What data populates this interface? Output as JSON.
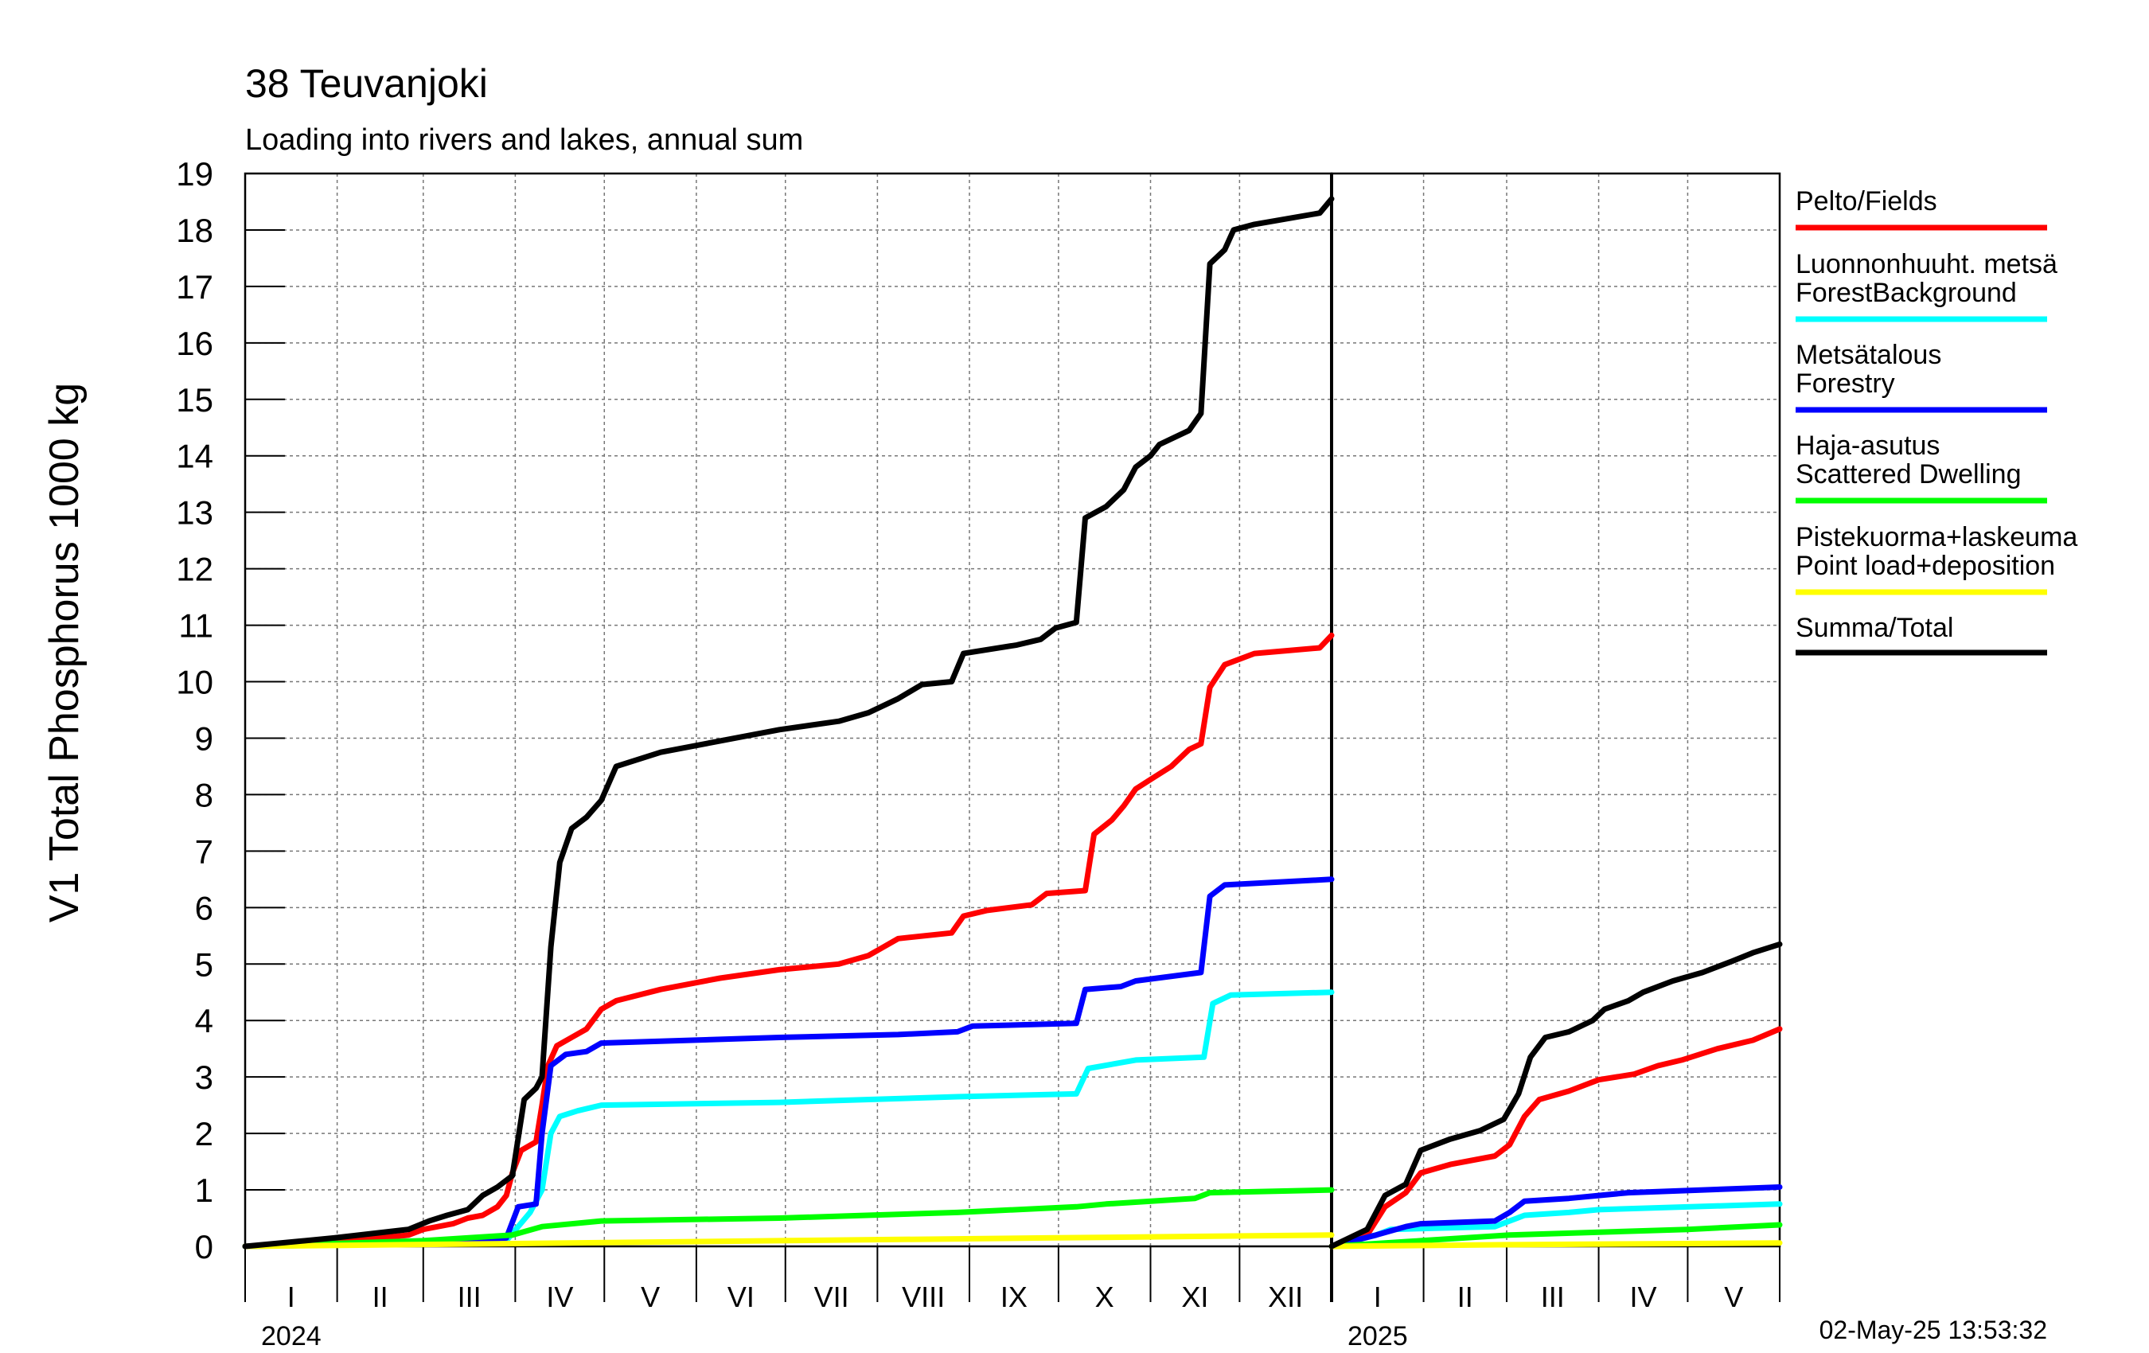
{
  "chart_data": {
    "type": "line",
    "title": "38 Teuvanjoki",
    "subtitle": "Loading into rivers and lakes, annual sum",
    "ylabel": "V1 Total Phosphorus 1000 kg",
    "ylim": [
      0,
      19
    ],
    "yticks": [
      0,
      1,
      2,
      3,
      4,
      5,
      6,
      7,
      8,
      9,
      10,
      11,
      12,
      13,
      14,
      15,
      16,
      17,
      18,
      19
    ],
    "grid": true,
    "legend_position": "right",
    "timestamp": "02-May-25 13:53:32",
    "panels": [
      {
        "year": "2024",
        "x_unit": "day-of-year",
        "xlim": [
          0,
          366
        ],
        "months": [
          "I",
          "II",
          "III",
          "IV",
          "V",
          "VI",
          "VII",
          "VIII",
          "IX",
          "X",
          "XI",
          "XII"
        ],
        "month_starts": [
          0,
          31,
          60,
          91,
          121,
          152,
          182,
          213,
          244,
          274,
          305,
          335,
          366
        ]
      },
      {
        "year": "2025",
        "x_unit": "day-of-year",
        "xlim": [
          0,
          151
        ],
        "months": [
          "I",
          "II",
          "III",
          "IV",
          "V"
        ],
        "month_starts": [
          0,
          31,
          59,
          90,
          120,
          151
        ]
      }
    ],
    "series": [
      {
        "name": "Pelto/Fields",
        "color": "#ff0000",
        "panel_2024": [
          [
            0,
            0
          ],
          [
            20,
            0.05
          ],
          [
            40,
            0.12
          ],
          [
            55,
            0.2
          ],
          [
            60,
            0.3
          ],
          [
            70,
            0.4
          ],
          [
            75,
            0.5
          ],
          [
            80,
            0.55
          ],
          [
            85,
            0.7
          ],
          [
            88,
            0.9
          ],
          [
            90,
            1.3
          ],
          [
            93,
            1.7
          ],
          [
            98,
            1.85
          ],
          [
            100,
            2.5
          ],
          [
            102,
            3.2
          ],
          [
            105,
            3.55
          ],
          [
            110,
            3.7
          ],
          [
            115,
            3.85
          ],
          [
            120,
            4.2
          ],
          [
            125,
            4.35
          ],
          [
            140,
            4.55
          ],
          [
            160,
            4.75
          ],
          [
            180,
            4.9
          ],
          [
            200,
            5.0
          ],
          [
            210,
            5.15
          ],
          [
            215,
            5.3
          ],
          [
            220,
            5.45
          ],
          [
            238,
            5.55
          ],
          [
            242,
            5.85
          ],
          [
            250,
            5.95
          ],
          [
            265,
            6.05
          ],
          [
            270,
            6.25
          ],
          [
            283,
            6.3
          ],
          [
            286,
            7.3
          ],
          [
            292,
            7.55
          ],
          [
            296,
            7.8
          ],
          [
            300,
            8.1
          ],
          [
            306,
            8.3
          ],
          [
            312,
            8.5
          ],
          [
            318,
            8.8
          ],
          [
            322,
            8.9
          ],
          [
            325,
            9.9
          ],
          [
            330,
            10.3
          ],
          [
            340,
            10.5
          ],
          [
            362,
            10.6
          ],
          [
            366,
            10.82
          ]
        ],
        "panel_2025": [
          [
            0,
            0
          ],
          [
            12,
            0.2
          ],
          [
            18,
            0.7
          ],
          [
            25,
            0.95
          ],
          [
            30,
            1.3
          ],
          [
            40,
            1.45
          ],
          [
            55,
            1.6
          ],
          [
            60,
            1.8
          ],
          [
            65,
            2.3
          ],
          [
            70,
            2.6
          ],
          [
            80,
            2.75
          ],
          [
            90,
            2.95
          ],
          [
            102,
            3.05
          ],
          [
            110,
            3.2
          ],
          [
            118,
            3.3
          ],
          [
            130,
            3.5
          ],
          [
            142,
            3.65
          ],
          [
            151,
            3.85
          ]
        ]
      },
      {
        "name": "Luonnonhuuht. metsä ForestBackground",
        "color": "#00ffff",
        "panel_2024": [
          [
            0,
            0
          ],
          [
            60,
            0.05
          ],
          [
            88,
            0.1
          ],
          [
            96,
            0.6
          ],
          [
            100,
            1.0
          ],
          [
            103,
            2.0
          ],
          [
            106,
            2.3
          ],
          [
            112,
            2.4
          ],
          [
            120,
            2.5
          ],
          [
            180,
            2.55
          ],
          [
            240,
            2.65
          ],
          [
            280,
            2.7
          ],
          [
            284,
            3.15
          ],
          [
            300,
            3.3
          ],
          [
            323,
            3.35
          ],
          [
            326,
            4.3
          ],
          [
            332,
            4.45
          ],
          [
            366,
            4.5
          ]
        ],
        "panel_2025": [
          [
            0,
            0
          ],
          [
            15,
            0.2
          ],
          [
            20,
            0.3
          ],
          [
            55,
            0.35
          ],
          [
            60,
            0.45
          ],
          [
            65,
            0.55
          ],
          [
            80,
            0.6
          ],
          [
            90,
            0.65
          ],
          [
            151,
            0.75
          ]
        ]
      },
      {
        "name": "Metsätalous Forestry",
        "color": "#0000ff",
        "panel_2024": [
          [
            0,
            0
          ],
          [
            60,
            0.05
          ],
          [
            88,
            0.15
          ],
          [
            92,
            0.7
          ],
          [
            98,
            0.75
          ],
          [
            100,
            2.0
          ],
          [
            103,
            3.2
          ],
          [
            108,
            3.4
          ],
          [
            115,
            3.45
          ],
          [
            120,
            3.6
          ],
          [
            180,
            3.7
          ],
          [
            220,
            3.75
          ],
          [
            240,
            3.8
          ],
          [
            245,
            3.9
          ],
          [
            280,
            3.95
          ],
          [
            283,
            4.55
          ],
          [
            295,
            4.6
          ],
          [
            300,
            4.7
          ],
          [
            322,
            4.85
          ],
          [
            325,
            6.2
          ],
          [
            330,
            6.4
          ],
          [
            366,
            6.5
          ]
        ],
        "panel_2025": [
          [
            0,
            0
          ],
          [
            15,
            0.2
          ],
          [
            25,
            0.35
          ],
          [
            30,
            0.4
          ],
          [
            55,
            0.45
          ],
          [
            60,
            0.6
          ],
          [
            65,
            0.8
          ],
          [
            80,
            0.85
          ],
          [
            90,
            0.9
          ],
          [
            100,
            0.95
          ],
          [
            151,
            1.05
          ]
        ]
      },
      {
        "name": "Haja-asutus Scattered Dwelling",
        "color": "#00ff00",
        "panel_2024": [
          [
            0,
            0
          ],
          [
            60,
            0.1
          ],
          [
            90,
            0.2
          ],
          [
            100,
            0.35
          ],
          [
            120,
            0.45
          ],
          [
            180,
            0.5
          ],
          [
            240,
            0.6
          ],
          [
            280,
            0.7
          ],
          [
            290,
            0.75
          ],
          [
            320,
            0.85
          ],
          [
            325,
            0.95
          ],
          [
            366,
            1.0
          ]
        ],
        "panel_2025": [
          [
            0,
            0
          ],
          [
            15,
            0.05
          ],
          [
            30,
            0.1
          ],
          [
            60,
            0.2
          ],
          [
            90,
            0.25
          ],
          [
            120,
            0.3
          ],
          [
            151,
            0.38
          ]
        ]
      },
      {
        "name": "Pistekuorma+laskeuma Point load+deposition",
        "color": "#ffff00",
        "panel_2024": [
          [
            0,
            0
          ],
          [
            90,
            0.05
          ],
          [
            180,
            0.1
          ],
          [
            270,
            0.15
          ],
          [
            366,
            0.2
          ]
        ],
        "panel_2025": [
          [
            0,
            0
          ],
          [
            60,
            0.03
          ],
          [
            151,
            0.06
          ]
        ]
      },
      {
        "name": "Summa/Total",
        "color": "#000000",
        "panel_2024": [
          [
            0,
            0
          ],
          [
            30,
            0.15
          ],
          [
            55,
            0.3
          ],
          [
            62,
            0.45
          ],
          [
            68,
            0.55
          ],
          [
            75,
            0.65
          ],
          [
            80,
            0.9
          ],
          [
            85,
            1.05
          ],
          [
            90,
            1.25
          ],
          [
            94,
            2.6
          ],
          [
            98,
            2.8
          ],
          [
            100,
            3.0
          ],
          [
            103,
            5.3
          ],
          [
            106,
            6.8
          ],
          [
            110,
            7.4
          ],
          [
            115,
            7.6
          ],
          [
            120,
            7.9
          ],
          [
            125,
            8.5
          ],
          [
            140,
            8.75
          ],
          [
            180,
            9.15
          ],
          [
            200,
            9.3
          ],
          [
            210,
            9.45
          ],
          [
            220,
            9.7
          ],
          [
            228,
            9.95
          ],
          [
            238,
            10.0
          ],
          [
            242,
            10.5
          ],
          [
            260,
            10.65
          ],
          [
            268,
            10.75
          ],
          [
            273,
            10.95
          ],
          [
            280,
            11.05
          ],
          [
            283,
            12.9
          ],
          [
            290,
            13.1
          ],
          [
            296,
            13.4
          ],
          [
            300,
            13.8
          ],
          [
            305,
            14.0
          ],
          [
            308,
            14.2
          ],
          [
            318,
            14.45
          ],
          [
            322,
            14.75
          ],
          [
            325,
            17.4
          ],
          [
            330,
            17.65
          ],
          [
            333,
            18.0
          ],
          [
            340,
            18.1
          ],
          [
            362,
            18.3
          ],
          [
            366,
            18.55
          ]
        ],
        "panel_2025": [
          [
            0,
            0
          ],
          [
            12,
            0.3
          ],
          [
            18,
            0.9
          ],
          [
            25,
            1.1
          ],
          [
            30,
            1.7
          ],
          [
            40,
            1.9
          ],
          [
            50,
            2.05
          ],
          [
            58,
            2.25
          ],
          [
            63,
            2.7
          ],
          [
            67,
            3.35
          ],
          [
            72,
            3.7
          ],
          [
            80,
            3.8
          ],
          [
            88,
            4.0
          ],
          [
            92,
            4.2
          ],
          [
            100,
            4.35
          ],
          [
            105,
            4.5
          ],
          [
            115,
            4.7
          ],
          [
            125,
            4.85
          ],
          [
            135,
            5.05
          ],
          [
            142,
            5.2
          ],
          [
            151,
            5.35
          ]
        ]
      }
    ]
  }
}
